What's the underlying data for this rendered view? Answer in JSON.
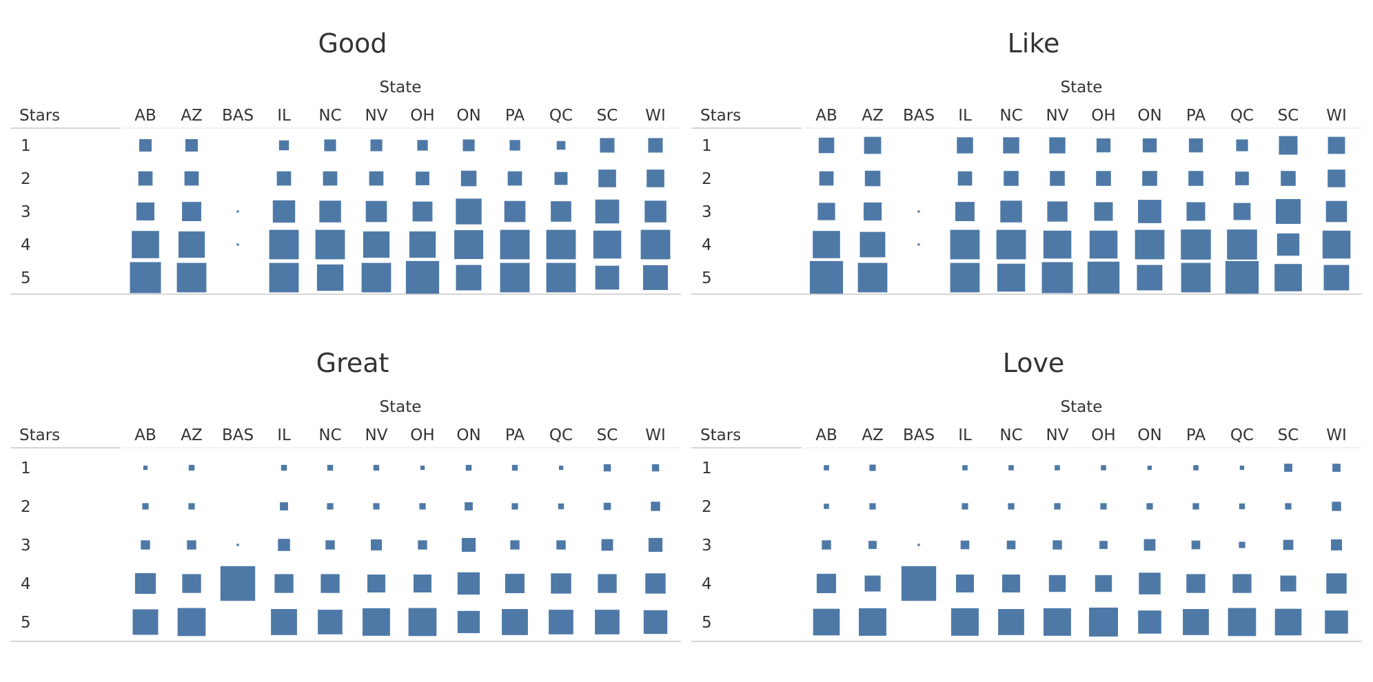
{
  "chart_data": [
    {
      "type": "heatmap",
      "title": "Good",
      "xlabel": "State",
      "ylabel": "Stars",
      "categories": [
        "AB",
        "AZ",
        "BAS",
        "IL",
        "NC",
        "NV",
        "OH",
        "ON",
        "PA",
        "QC",
        "SC",
        "WI"
      ],
      "rows": [
        "1",
        "2",
        "3",
        "4",
        "5"
      ],
      "values": [
        [
          0.4,
          0.4,
          0,
          0.32,
          0.38,
          0.38,
          0.34,
          0.38,
          0.34,
          0.28,
          0.47,
          0.47
        ],
        [
          0.46,
          0.46,
          0,
          0.46,
          0.46,
          0.46,
          0.44,
          0.5,
          0.46,
          0.42,
          0.57,
          0.57
        ],
        [
          0.58,
          0.62,
          0.07,
          0.72,
          0.7,
          0.68,
          0.64,
          0.83,
          0.68,
          0.66,
          0.77,
          0.7
        ],
        [
          0.88,
          0.85,
          0.07,
          0.95,
          0.95,
          0.85,
          0.85,
          0.93,
          0.95,
          0.95,
          0.9,
          0.95
        ],
        [
          1.0,
          0.95,
          0,
          0.95,
          0.85,
          0.95,
          1.07,
          0.82,
          0.95,
          0.95,
          0.77,
          0.8
        ]
      ],
      "grid": false
    },
    {
      "type": "heatmap",
      "title": "Like",
      "xlabel": "State",
      "ylabel": "Stars",
      "categories": [
        "AB",
        "AZ",
        "BAS",
        "IL",
        "NC",
        "NV",
        "OH",
        "ON",
        "PA",
        "QC",
        "SC",
        "WI"
      ],
      "rows": [
        "1",
        "2",
        "3",
        "4",
        "5"
      ],
      "values": [
        [
          0.5,
          0.55,
          0,
          0.52,
          0.52,
          0.52,
          0.45,
          0.45,
          0.45,
          0.38,
          0.6,
          0.55
        ],
        [
          0.46,
          0.5,
          0,
          0.46,
          0.48,
          0.48,
          0.48,
          0.48,
          0.48,
          0.44,
          0.48,
          0.57
        ],
        [
          0.56,
          0.58,
          0.07,
          0.62,
          0.7,
          0.65,
          0.6,
          0.75,
          0.6,
          0.55,
          0.8,
          0.68
        ],
        [
          0.88,
          0.82,
          0.07,
          0.95,
          0.95,
          0.9,
          0.9,
          0.95,
          0.97,
          0.97,
          0.72,
          0.9
        ],
        [
          1.07,
          0.95,
          0,
          0.95,
          0.9,
          1.0,
          1.03,
          0.82,
          0.95,
          1.07,
          0.88,
          0.82
        ]
      ],
      "grid": false
    },
    {
      "type": "heatmap",
      "title": "Great",
      "xlabel": "State",
      "ylabel": "Stars",
      "categories": [
        "AB",
        "AZ",
        "BAS",
        "IL",
        "NC",
        "NV",
        "OH",
        "ON",
        "PA",
        "QC",
        "SC",
        "WI"
      ],
      "rows": [
        "1",
        "2",
        "3",
        "4",
        "5"
      ],
      "values": [
        [
          0.15,
          0.2,
          0,
          0.2,
          0.2,
          0.2,
          0.15,
          0.2,
          0.2,
          0.15,
          0.25,
          0.25
        ],
        [
          0.22,
          0.22,
          0,
          0.28,
          0.22,
          0.22,
          0.22,
          0.28,
          0.22,
          0.2,
          0.25,
          0.32
        ],
        [
          0.32,
          0.32,
          0.08,
          0.42,
          0.32,
          0.38,
          0.32,
          0.48,
          0.32,
          0.32,
          0.4,
          0.48
        ],
        [
          0.72,
          0.65,
          1.2,
          0.65,
          0.65,
          0.62,
          0.62,
          0.77,
          0.67,
          0.7,
          0.65,
          0.7
        ],
        [
          0.88,
          0.97,
          0,
          0.9,
          0.85,
          0.95,
          0.97,
          0.77,
          0.9,
          0.85,
          0.85,
          0.82
        ]
      ],
      "grid": false
    },
    {
      "type": "heatmap",
      "title": "Love",
      "xlabel": "State",
      "ylabel": "Stars",
      "categories": [
        "AB",
        "AZ",
        "BAS",
        "IL",
        "NC",
        "NV",
        "OH",
        "ON",
        "PA",
        "QC",
        "SC",
        "WI"
      ],
      "rows": [
        "1",
        "2",
        "3",
        "4",
        "5"
      ],
      "values": [
        [
          0.18,
          0.22,
          0,
          0.18,
          0.18,
          0.18,
          0.18,
          0.15,
          0.18,
          0.15,
          0.28,
          0.28
        ],
        [
          0.18,
          0.22,
          0,
          0.22,
          0.22,
          0.22,
          0.22,
          0.22,
          0.22,
          0.2,
          0.22,
          0.32
        ],
        [
          0.32,
          0.28,
          0.08,
          0.3,
          0.3,
          0.32,
          0.28,
          0.4,
          0.3,
          0.22,
          0.35,
          0.38
        ],
        [
          0.67,
          0.55,
          1.2,
          0.62,
          0.62,
          0.58,
          0.58,
          0.75,
          0.65,
          0.65,
          0.55,
          0.7
        ],
        [
          0.92,
          0.95,
          0,
          0.95,
          0.9,
          0.95,
          1.0,
          0.8,
          0.9,
          0.97,
          0.92,
          0.8
        ]
      ],
      "grid": false
    }
  ],
  "colors": {
    "mark": "#4e79a7",
    "text": "#333333",
    "rule": "#c8c8c8"
  }
}
